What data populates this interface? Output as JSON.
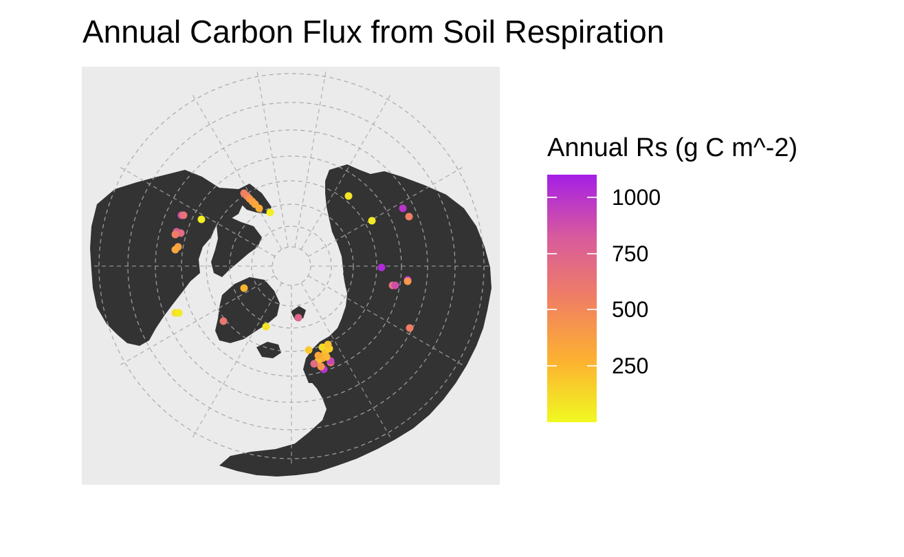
{
  "title": "Annual Carbon Flux from Soil Respiration",
  "colors": {
    "panel_background": "#ebebeb",
    "land": "#333333",
    "graticule": "#a6a6a6",
    "scale_low": "#f0f921",
    "scale_mid_low": "#fdb131",
    "scale_mid": "#f07f63",
    "scale_mid_high": "#d85a9d",
    "scale_high": "#a51fe6"
  },
  "legend": {
    "title": "Annual Rs (g C m^-2)",
    "min": 0,
    "max": 1100,
    "ticks": [
      {
        "value": 1000,
        "label": "1000"
      },
      {
        "value": 750,
        "label": "750"
      },
      {
        "value": 500,
        "label": "500"
      },
      {
        "value": 250,
        "label": "250"
      }
    ]
  },
  "map_data": {
    "projection": "north polar azimuthal (orthographic-like), centered near the north pole",
    "graticule": "dashed latitude circles and meridians",
    "points": [
      {
        "region": "northern Alaska",
        "value": 560
      },
      {
        "region": "northern Alaska",
        "value": 520
      },
      {
        "region": "northern Alaska",
        "value": 430
      },
      {
        "region": "northern Alaska",
        "value": 380
      },
      {
        "region": "northern Alaska",
        "value": 340
      },
      {
        "region": "northern Alaska",
        "value": 300
      },
      {
        "region": "northern Alaska",
        "value": 40
      },
      {
        "region": "northern Siberia",
        "value": 80
      },
      {
        "region": "central Siberia",
        "value": 60
      },
      {
        "region": "eastern Siberia",
        "value": 1000
      },
      {
        "region": "eastern Siberia",
        "value": 560
      },
      {
        "region": "western Canada",
        "value": 880
      },
      {
        "region": "western Canada",
        "value": 640
      },
      {
        "region": "western Canada",
        "value": 40
      },
      {
        "region": "western Canada",
        "value": 820
      },
      {
        "region": "western Canada",
        "value": 700
      },
      {
        "region": "western Canada",
        "value": 560
      },
      {
        "region": "western Canada",
        "value": 380
      },
      {
        "region": "western Canada",
        "value": 330
      },
      {
        "region": "central Russia",
        "value": 1050
      },
      {
        "region": "western Russia",
        "value": 1000
      },
      {
        "region": "western Russia",
        "value": 420
      },
      {
        "region": "western Russia",
        "value": 650
      },
      {
        "region": "western Russia",
        "value": 880
      },
      {
        "region": "eastern Canada",
        "value": 100
      },
      {
        "region": "eastern Canada",
        "value": 60
      },
      {
        "region": "Greenland",
        "value": 260
      },
      {
        "region": "Greenland",
        "value": 620
      },
      {
        "region": "Iceland",
        "value": 80
      },
      {
        "region": "Svalbard",
        "value": 740
      },
      {
        "region": "Siberia",
        "value": 560
      },
      {
        "region": "Scandinavia",
        "value": 180
      },
      {
        "region": "Scandinavia",
        "value": 120
      },
      {
        "region": "Scandinavia",
        "value": 220
      },
      {
        "region": "Scandinavia",
        "value": 160
      },
      {
        "region": "Scandinavia",
        "value": 300
      },
      {
        "region": "Scandinavia",
        "value": 230
      },
      {
        "region": "Scandinavia",
        "value": 700
      },
      {
        "region": "Scandinavia",
        "value": 560
      },
      {
        "region": "Scandinavia",
        "value": 1000
      },
      {
        "region": "Scandinavia",
        "value": 920
      },
      {
        "region": "Scandinavia",
        "value": 330
      },
      {
        "region": "Scandinavia",
        "value": 250
      },
      {
        "region": "Scandinavia",
        "value": 420
      },
      {
        "region": "Scandinavia",
        "value": 200
      }
    ]
  }
}
